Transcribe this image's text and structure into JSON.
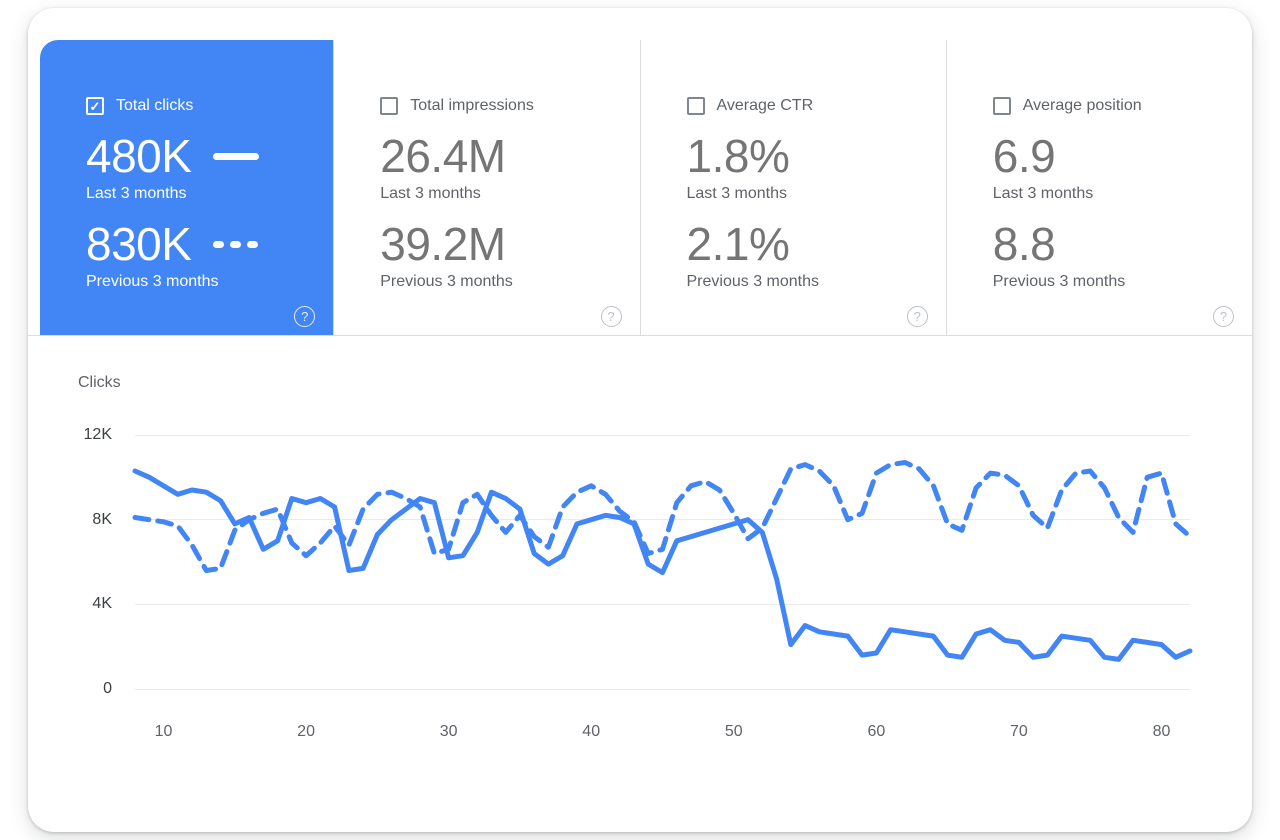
{
  "icons": {
    "check": "✓",
    "help": "?"
  },
  "colors": {
    "accent": "#4285f4",
    "divider": "#dadce0",
    "value_text": "#757575",
    "label_text": "#5f6368",
    "grid": "#e8eaed"
  },
  "cards": [
    {
      "label": "Total clicks",
      "selected": true,
      "value_current": "480K",
      "period_current": "Last 3 months",
      "value_previous": "830K",
      "period_previous": "Previous 3 months"
    },
    {
      "label": "Total impressions",
      "selected": false,
      "value_current": "26.4M",
      "period_current": "Last 3 months",
      "value_previous": "39.2M",
      "period_previous": "Previous 3 months"
    },
    {
      "label": "Average CTR",
      "selected": false,
      "value_current": "1.8%",
      "period_current": "Last 3 months",
      "value_previous": "2.1%",
      "period_previous": "Previous 3 months"
    },
    {
      "label": "Average position",
      "selected": false,
      "value_current": "6.9",
      "period_current": "Last 3 months",
      "value_previous": "8.8",
      "period_previous": "Previous 3 months"
    }
  ],
  "chart_data": {
    "type": "line",
    "title": "Clicks",
    "ylabel": "Clicks",
    "xlim": [
      8,
      82
    ],
    "ylim": [
      0,
      12000
    ],
    "grid": "horizontal",
    "x_ticks": [
      10,
      20,
      30,
      40,
      50,
      60,
      70,
      80
    ],
    "y_ticks": [
      {
        "value": 0,
        "label": "0"
      },
      {
        "value": 4000,
        "label": "4K"
      },
      {
        "value": 8000,
        "label": "8K"
      },
      {
        "value": 12000,
        "label": "12K"
      }
    ],
    "x": [
      8,
      9,
      10,
      11,
      12,
      13,
      14,
      15,
      16,
      17,
      18,
      19,
      20,
      21,
      22,
      23,
      24,
      25,
      26,
      27,
      28,
      29,
      30,
      31,
      32,
      33,
      34,
      35,
      36,
      37,
      38,
      39,
      40,
      41,
      42,
      43,
      44,
      45,
      46,
      47,
      48,
      49,
      50,
      51,
      52,
      53,
      54,
      55,
      56,
      57,
      58,
      59,
      60,
      61,
      62,
      63,
      64,
      65,
      66,
      67,
      68,
      69,
      70,
      71,
      72,
      73,
      74,
      75,
      76,
      77,
      78,
      79,
      80,
      81,
      82
    ],
    "series": [
      {
        "name": "Last 3 months",
        "style": "solid",
        "values": [
          10300,
          10000,
          9600,
          9200,
          9400,
          9300,
          8900,
          7800,
          8100,
          6600,
          7000,
          9000,
          8800,
          9000,
          8600,
          5600,
          5700,
          7300,
          8000,
          8500,
          9000,
          8800,
          6200,
          6300,
          7400,
          9300,
          9000,
          8500,
          6400,
          5900,
          6300,
          7800,
          8000,
          8200,
          8100,
          7800,
          5900,
          5500,
          7000,
          7200,
          7400,
          7600,
          7800,
          8000,
          7400,
          5200,
          2100,
          3000,
          2700,
          2600,
          2500,
          1600,
          1700,
          2800,
          2700,
          2600,
          2500,
          1600,
          1500,
          2600,
          2800,
          2300,
          2200,
          1500,
          1600,
          2500,
          2400,
          2300,
          1500,
          1400,
          2300,
          2200,
          2100,
          1500,
          1800
        ]
      },
      {
        "name": "Previous 3 months",
        "style": "dashed",
        "values": [
          8100,
          8000,
          7900,
          7700,
          6800,
          5600,
          5700,
          7500,
          8000,
          8300,
          8500,
          6900,
          6300,
          6900,
          7700,
          6800,
          8500,
          9200,
          9300,
          9000,
          8600,
          6400,
          6600,
          8800,
          9200,
          8200,
          7400,
          8200,
          7200,
          6700,
          8600,
          9300,
          9600,
          9200,
          8400,
          7900,
          6400,
          6600,
          8800,
          9600,
          9800,
          9400,
          8300,
          7100,
          7600,
          9000,
          10400,
          10600,
          10300,
          9600,
          8000,
          8300,
          10200,
          10600,
          10700,
          10400,
          9600,
          7800,
          7500,
          9500,
          10200,
          10100,
          9600,
          8200,
          7600,
          9400,
          10200,
          10300,
          9500,
          8100,
          7400,
          10000,
          10200,
          7800,
          7200
        ]
      }
    ]
  }
}
